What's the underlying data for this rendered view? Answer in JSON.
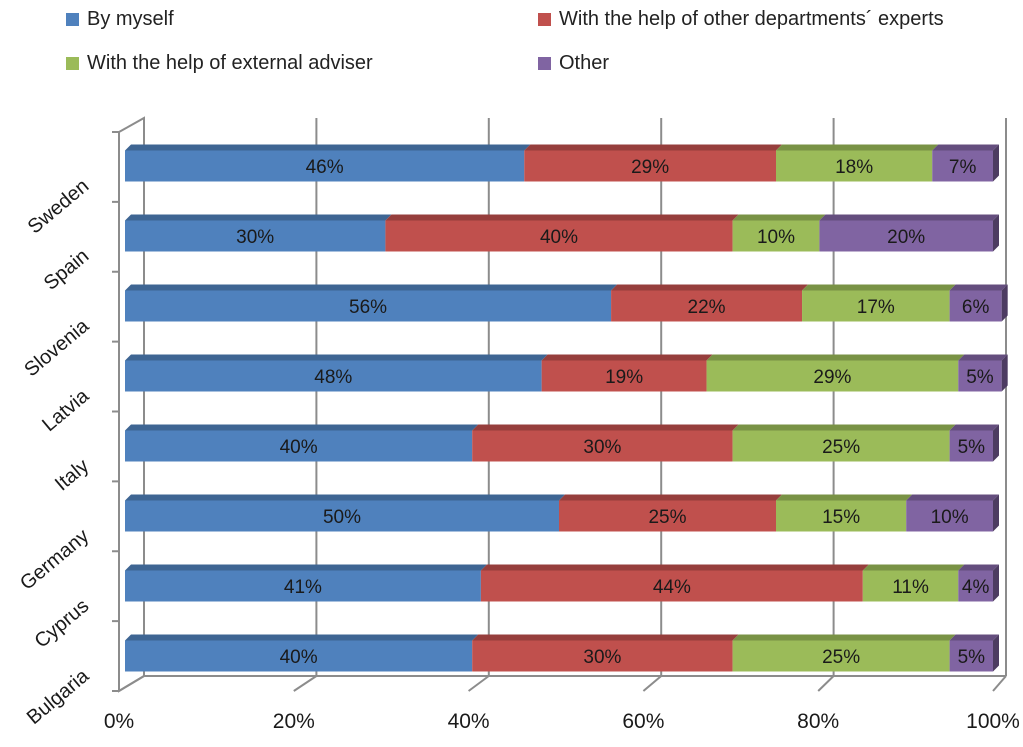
{
  "chart_data": {
    "type": "bar",
    "orientation": "horizontal",
    "stacked": "percent",
    "categories": [
      "Sweden",
      "Spain",
      "Slovenia",
      "Latvia",
      "Italy",
      "Germany",
      "Cyprus",
      "Bulgaria"
    ],
    "series": [
      {
        "name": "By myself",
        "color": "#4F81BD",
        "values": [
          46,
          30,
          56,
          48,
          40,
          50,
          41,
          40
        ]
      },
      {
        "name": "With the help of other departments´ experts",
        "color": "#C0504D",
        "values": [
          29,
          40,
          22,
          19,
          30,
          25,
          44,
          30
        ]
      },
      {
        "name": "With the help of external adviser",
        "color": "#9BBB59",
        "values": [
          18,
          10,
          17,
          29,
          25,
          15,
          11,
          25
        ]
      },
      {
        "name": "Other",
        "color": "#8064A2",
        "values": [
          7,
          20,
          6,
          5,
          5,
          10,
          4,
          5
        ]
      }
    ],
    "data_labels": [
      [
        "46%",
        "29%",
        "18%",
        "7%"
      ],
      [
        "30%",
        "40%",
        "10%",
        "20%"
      ],
      [
        "56%",
        "22%",
        "17%",
        "6%"
      ],
      [
        "48%",
        "19%",
        "29%",
        "5%"
      ],
      [
        "40%",
        "30%",
        "25%",
        "5%"
      ],
      [
        "50%",
        "25%",
        "15%",
        "10%"
      ],
      [
        "41%",
        "44%",
        "11%",
        "4%"
      ],
      [
        "40%",
        "30%",
        "25%",
        "5%"
      ]
    ],
    "x_ticks": [
      "0%",
      "20%",
      "40%",
      "60%",
      "80%",
      "100%"
    ],
    "xlim": [
      0,
      100
    ],
    "grid": true,
    "legend_position": "top",
    "style": "3d"
  }
}
